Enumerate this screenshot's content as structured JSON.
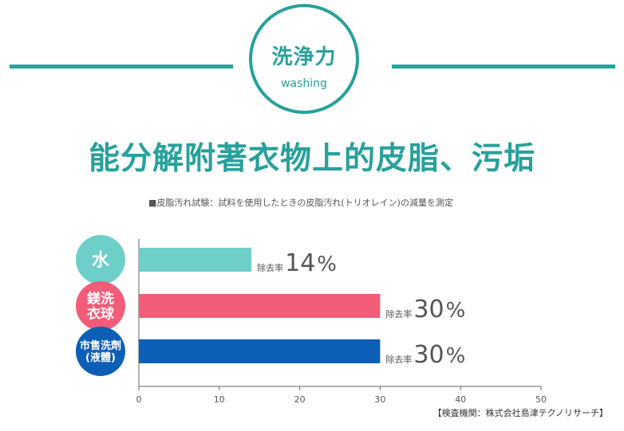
{
  "header": {
    "badge_title": "洗浄力",
    "badge_subtitle": "washing",
    "headline": "能分解附著衣物上的皮脂、污垢",
    "test_note": "■皮脂汚れ試験：試料を使用したときの皮脂汚れ(トリオレイン)の減量を測定"
  },
  "chart_data": {
    "type": "bar",
    "orientation": "horizontal",
    "categories": [
      {
        "lines": [
          "水"
        ],
        "color": "#6ecfc9"
      },
      {
        "lines": [
          "鎂洗",
          "衣球"
        ],
        "color": "#f35c78"
      },
      {
        "lines": [
          "市售洗劑",
          "(液體)"
        ],
        "color": "#0b5fb6"
      }
    ],
    "values": [
      14,
      30,
      30
    ],
    "value_prefix": "除去率",
    "value_suffix": "%",
    "xlim": [
      0,
      50
    ],
    "xticks": [
      0,
      10,
      20,
      30,
      40,
      50
    ],
    "grid": false
  },
  "source": "【検査機関：株式会社島津テクノリサーチ】"
}
